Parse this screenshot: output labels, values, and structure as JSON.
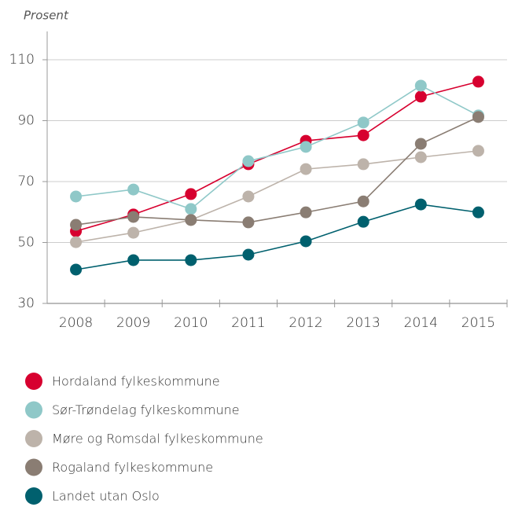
{
  "chart_data": {
    "type": "line",
    "ylabel": "Prosent",
    "categories": [
      "2008",
      "2009",
      "2010",
      "2011",
      "2012",
      "2013",
      "2014",
      "2015"
    ],
    "ylim": [
      30,
      110
    ],
    "yticks": [
      30,
      50,
      70,
      90,
      110
    ],
    "grid": true,
    "series": [
      {
        "name": "Hordaland fylkeskommune",
        "color": "#d7002f",
        "values": [
          53.7,
          59.2,
          65.9,
          75.7,
          83.4,
          85.2,
          97.9,
          102.8
        ]
      },
      {
        "name": "Sør-Trøndelag fylkeskommune",
        "color": "#8fc8c8",
        "values": [
          65.1,
          67.4,
          61.0,
          76.7,
          81.4,
          89.4,
          101.5,
          91.7
        ]
      },
      {
        "name": "Møre og Romsdal fylkeskommune",
        "color": "#bdb3aa",
        "values": [
          50.1,
          53.2,
          57.4,
          65.1,
          74.1,
          75.7,
          78.0,
          80.1
        ]
      },
      {
        "name": "Rogaland fylkeskommune",
        "color": "#8a7d73",
        "values": [
          55.8,
          58.4,
          57.4,
          56.6,
          59.9,
          63.5,
          82.4,
          91.2
        ]
      },
      {
        "name": "Landet utan Oslo",
        "color": "#00606e",
        "values": [
          41.1,
          44.2,
          44.2,
          46.0,
          50.4,
          56.8,
          62.5,
          59.9
        ]
      }
    ]
  }
}
